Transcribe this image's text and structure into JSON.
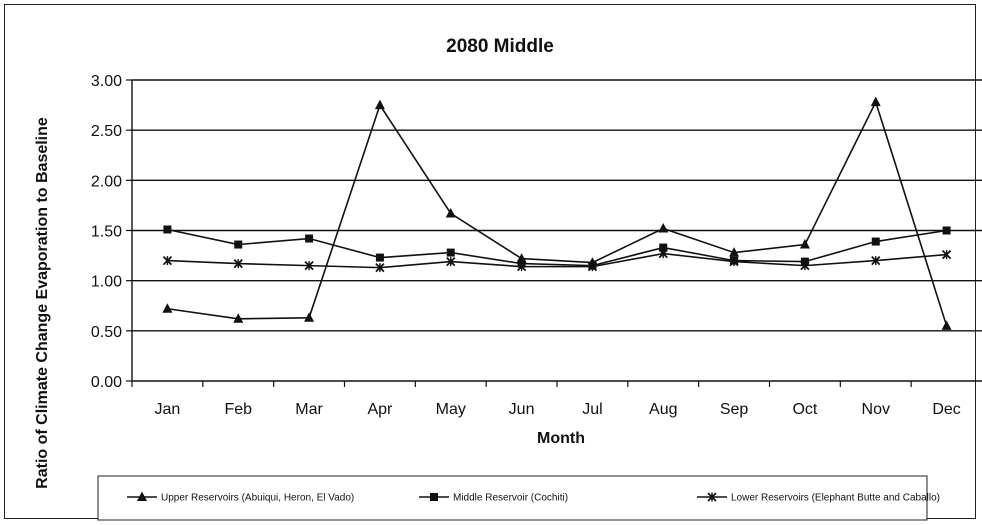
{
  "chart_data": {
    "type": "line",
    "title": "2080 Middle",
    "xlabel": "Month",
    "ylabel": "Ratio of Climate Change Evaporation to Baseline",
    "categories": [
      "Jan",
      "Feb",
      "Mar",
      "Apr",
      "May",
      "Jun",
      "Jul",
      "Aug",
      "Sep",
      "Oct",
      "Nov",
      "Dec"
    ],
    "ylim": [
      0,
      3
    ],
    "yticks": [
      "0.00",
      "0.50",
      "1.00",
      "1.50",
      "2.00",
      "2.50",
      "3.00"
    ],
    "grid": true,
    "legend_position": "bottom",
    "series": [
      {
        "name": "Upper  Reservoirs (Abuiqui, Heron, El Vado)",
        "marker": "triangle",
        "values": [
          0.72,
          0.62,
          0.63,
          2.75,
          1.67,
          1.22,
          1.18,
          1.52,
          1.28,
          1.36,
          2.78,
          0.55
        ]
      },
      {
        "name": "Middle Reservoir (Cochiti)",
        "marker": "square",
        "values": [
          1.51,
          1.36,
          1.42,
          1.23,
          1.28,
          1.17,
          1.15,
          1.33,
          1.2,
          1.19,
          1.39,
          1.5
        ]
      },
      {
        "name": "Lower Reservoirs (Elephant Butte and Caballo)",
        "marker": "x",
        "values": [
          1.2,
          1.17,
          1.15,
          1.13,
          1.19,
          1.14,
          1.14,
          1.27,
          1.19,
          1.15,
          1.2,
          1.26
        ]
      }
    ],
    "colors": {
      "line": "#111111",
      "grid": "#111111"
    }
  }
}
